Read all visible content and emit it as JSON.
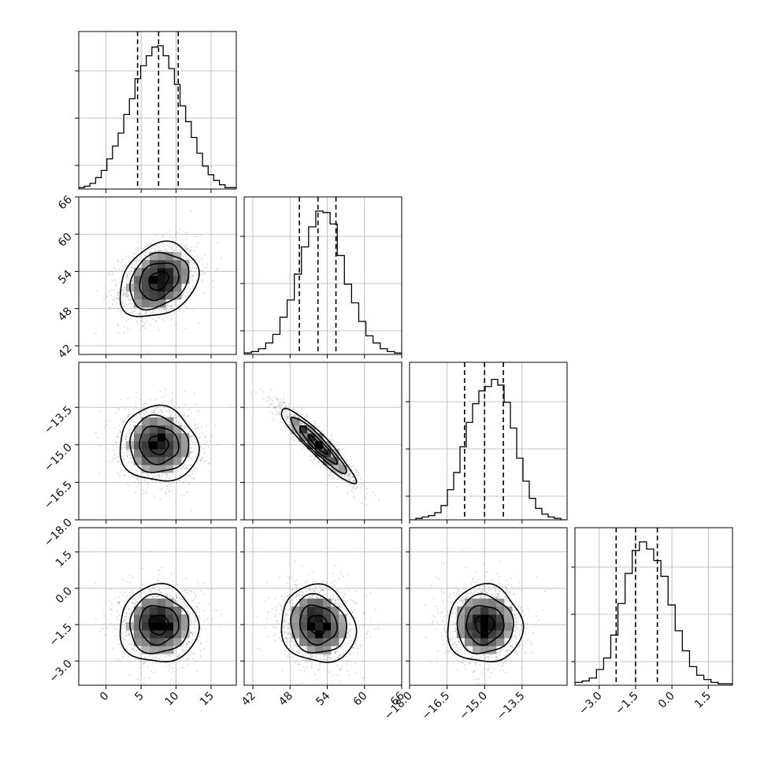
{
  "chart_data": {
    "type": "corner",
    "grid": true,
    "variables": [
      {
        "range": [
          -3.9,
          18.6
        ],
        "ticks": [
          0,
          5,
          10,
          15
        ],
        "tick_labels": [
          "0",
          "5",
          "10",
          "15"
        ],
        "quantiles": [
          4.5,
          7.5,
          10.3
        ],
        "center": 7.5,
        "sigma": 2.8
      },
      {
        "range": [
          40.6,
          66.0
        ],
        "ticks": [
          42,
          48,
          54,
          60,
          66
        ],
        "tick_labels": [
          "42",
          "48",
          "54",
          "60",
          "66"
        ],
        "quantiles": [
          49.5,
          52.5,
          55.4
        ],
        "center": 52.5,
        "sigma": 3.0
      },
      {
        "range": [
          -18.0,
          -11.7
        ],
        "ticks": [
          -18.0,
          -16.5,
          -15.0,
          -13.5
        ],
        "tick_labels": [
          "−18.0",
          "−16.5",
          "−15.0",
          "−13.5"
        ],
        "quantiles": [
          -15.8,
          -15.0,
          -14.25
        ],
        "center": -15.0,
        "sigma": 0.75
      },
      {
        "range": [
          -4.0,
          2.5
        ],
        "ticks": [
          -3.0,
          -1.5,
          0.0,
          1.5
        ],
        "tick_labels": [
          "−3.0",
          "−1.5",
          "0.0",
          "1.5"
        ],
        "quantiles": [
          -2.3,
          -1.5,
          -0.6
        ],
        "center": -1.5,
        "sigma": 0.8
      }
    ],
    "histograms": [
      [
        0.01,
        0.02,
        0.04,
        0.08,
        0.13,
        0.21,
        0.3,
        0.39,
        0.52,
        0.63,
        0.77,
        0.86,
        0.93,
        0.99,
        1.0,
        0.93,
        0.84,
        0.73,
        0.58,
        0.47,
        0.36,
        0.25,
        0.16,
        0.1,
        0.06,
        0.03,
        0.01,
        0.01
      ],
      [
        0.01,
        0.02,
        0.04,
        0.08,
        0.14,
        0.26,
        0.38,
        0.56,
        0.75,
        0.89,
        1.0,
        0.99,
        0.91,
        0.69,
        0.49,
        0.36,
        0.23,
        0.13,
        0.08,
        0.04,
        0.02,
        0.01
      ],
      [
        0.0,
        0.01,
        0.02,
        0.03,
        0.05,
        0.1,
        0.21,
        0.33,
        0.51,
        0.68,
        0.81,
        0.9,
        0.93,
        0.98,
        0.94,
        0.82,
        0.64,
        0.43,
        0.27,
        0.15,
        0.08,
        0.04,
        0.02,
        0.01,
        0.0
      ],
      [
        0.02,
        0.03,
        0.05,
        0.11,
        0.19,
        0.35,
        0.57,
        0.78,
        0.94,
        1.0,
        0.95,
        0.87,
        0.76,
        0.56,
        0.38,
        0.24,
        0.13,
        0.07,
        0.04,
        0.02,
        0.01,
        0.01
      ]
    ],
    "pairs": [
      {
        "x": 0,
        "y": 1,
        "correlation": 0.25
      },
      {
        "x": 0,
        "y": 2,
        "correlation": -0.05
      },
      {
        "x": 1,
        "y": 2,
        "correlation": -0.93
      },
      {
        "x": 0,
        "y": 3,
        "correlation": 0.0
      },
      {
        "x": 1,
        "y": 3,
        "correlation": -0.1
      },
      {
        "x": 2,
        "y": 3,
        "correlation": 0.0
      }
    ],
    "contour_levels_sigma": [
      0.5,
      1.0,
      1.5,
      2.0
    ]
  },
  "colors": {
    "line": "#000000",
    "grid": "#b0b0b0",
    "points": "#9a9a9a",
    "frame": "#000000"
  }
}
